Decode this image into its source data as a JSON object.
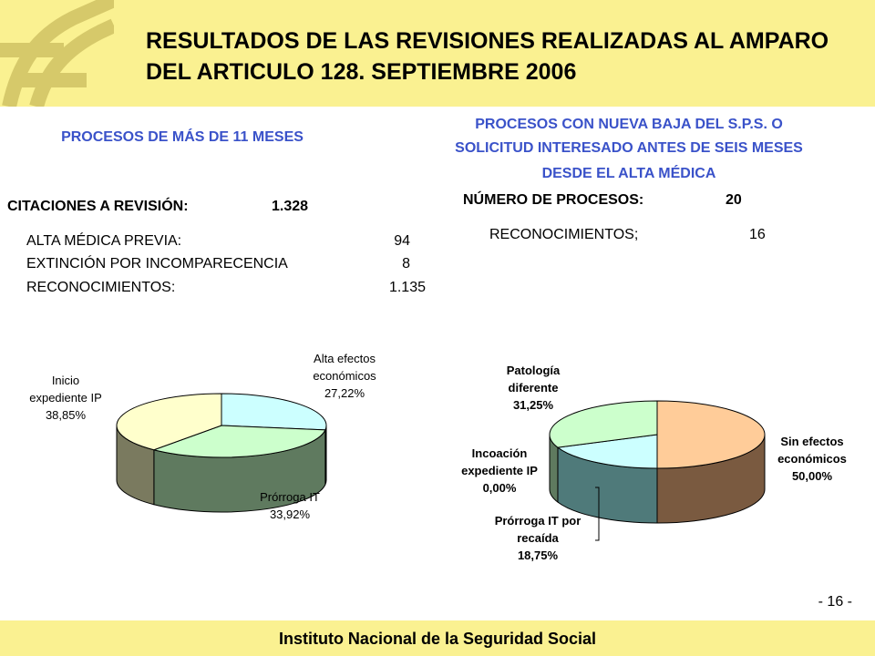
{
  "header": {
    "title": "RESULTADOS DE LAS REVISIONES REALIZADAS AL AMPARO DEL ARTICULO 128. SEPTIEMBRE 2006"
  },
  "left": {
    "heading": "PROCESOS DE MÁS DE 11 MESES",
    "citaciones_label": "CITACIONES A REVISIÓN:",
    "citaciones_value": "1.328",
    "rows": [
      {
        "label": "ALTA MÉDICA PREVIA:",
        "value": "94"
      },
      {
        "label": "EXTINCIÓN POR INCOMPARECENCIA",
        "value": "8"
      },
      {
        "label": "RECONOCIMIENTOS:",
        "value": "1.135"
      }
    ]
  },
  "right": {
    "heading_l1": "PROCESOS CON NUEVA BAJA DEL S.P.S. O",
    "heading_l2": "SOLICITUD INTERESADO ANTES DE SEIS MESES",
    "heading_l3": "DESDE EL ALTA MÉDICA",
    "num_label": "NÚMERO DE PROCESOS:",
    "num_value": "20",
    "recon_label": "RECONOCIMIENTOS;",
    "recon_value": "16"
  },
  "chart_data": [
    {
      "type": "pie",
      "title": "",
      "slices": [
        {
          "name": "Alta efectos económicos",
          "value": 27.22,
          "label_lines": [
            "Alta efectos",
            "económicos",
            "27,22%"
          ],
          "color": "#ccffff",
          "side": "#5f8a8a"
        },
        {
          "name": "Prórroga IT",
          "value": 33.92,
          "label_lines": [
            "Prórroga IT",
            "33,92%"
          ],
          "color": "#ccffcc",
          "side": "#5f7a5f"
        },
        {
          "name": "Inicio expediente IP",
          "value": 38.85,
          "label_lines": [
            "Inicio",
            "expediente IP",
            "38,85%"
          ],
          "color": "#ffffcc",
          "side": "#7a7a5f"
        }
      ]
    },
    {
      "type": "pie",
      "title": "",
      "slices": [
        {
          "name": "Sin efectos económicos",
          "value": 50.0,
          "label_lines": [
            "Sin efectos",
            "económicos",
            "50,00%"
          ],
          "color": "#ffcc99",
          "side": "#7a5a40"
        },
        {
          "name": "Prórroga IT por recaída",
          "value": 18.75,
          "label_lines": [
            "Prórroga IT por",
            "recaída",
            "18,75%"
          ],
          "color": "#ccffff",
          "side": "#4f7a7a"
        },
        {
          "name": "Incoación expediente IP",
          "value": 0.0,
          "label_lines": [
            "Incoación",
            "expediente IP",
            "0,00%"
          ],
          "color": "#ccccff",
          "side": "#5a5a7a"
        },
        {
          "name": "Patología diferente",
          "value": 31.25,
          "label_lines": [
            "Patología",
            "diferente",
            "31,25%"
          ],
          "color": "#ccffcc",
          "side": "#5f7a5f"
        }
      ]
    }
  ],
  "footer": {
    "institution": "Instituto Nacional de la Seguridad Social",
    "page": "- 16 -"
  }
}
